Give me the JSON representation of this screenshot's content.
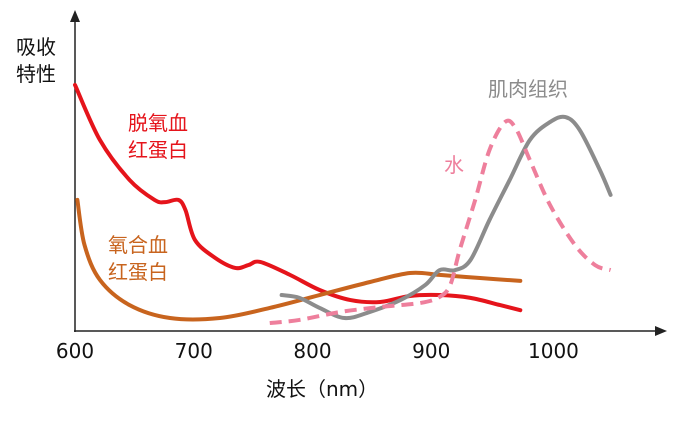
{
  "chart_data": {
    "type": "line",
    "title": "",
    "xlabel": "波长（nm）",
    "ylabel": [
      "吸收",
      "特性"
    ],
    "xlim": [
      600,
      1100
    ],
    "ylim": [
      0,
      100
    ],
    "xticks": [
      600,
      700,
      800,
      900,
      1000
    ],
    "grid": false,
    "series": [
      {
        "name": [
          "脱氧血",
          "红蛋白"
        ],
        "color": "#e5141b",
        "dashed": false,
        "x": [
          600,
          621,
          646,
          667,
          676,
          687,
          693,
          701,
          718,
          735,
          746,
          756,
          781,
          806,
          832,
          857,
          882,
          907,
          933,
          958,
          975
        ],
        "y": [
          77.8,
          60.3,
          47.6,
          41.3,
          40.6,
          41.3,
          38.1,
          28.6,
          22.9,
          19.7,
          20.6,
          21.6,
          17.5,
          12.7,
          9.5,
          8.9,
          10.8,
          11.1,
          10.2,
          7.9,
          6.3
        ]
      },
      {
        "name": [
          "氧合血",
          "红蛋白"
        ],
        "color": "#c8641e",
        "dashed": false,
        "x": [
          602,
          608,
          621,
          646,
          680,
          722,
          764,
          806,
          848,
          882,
          907,
          941,
          975
        ],
        "y": [
          41.3,
          27,
          15.9,
          7.9,
          3.8,
          3.8,
          7,
          11.1,
          15.2,
          18.1,
          17.5,
          16.5,
          15.6
        ]
      },
      {
        "name": [
          "肌肉组织"
        ],
        "color": "#8c8c8c",
        "dashed": false,
        "x": [
          774,
          789,
          806,
          827,
          848,
          874,
          895,
          907,
          920,
          933,
          949,
          966,
          983,
          1000,
          1013,
          1025,
          1042,
          1051
        ],
        "y": [
          11.1,
          10.2,
          7,
          3.8,
          5.7,
          9.5,
          14.3,
          19,
          19,
          22.2,
          34.9,
          47.6,
          60.3,
          66,
          67.6,
          63.5,
          50.8,
          42.9
        ]
      },
      {
        "name": [
          "水"
        ],
        "color": "#ee7f9c",
        "dashed": true,
        "x": [
          764,
          789,
          823,
          857,
          891,
          907,
          916,
          924,
          937,
          949,
          962,
          971,
          983,
          1000,
          1021,
          1038,
          1051
        ],
        "y": [
          2.2,
          3.2,
          5.7,
          7.3,
          8.6,
          10.5,
          14.3,
          25.4,
          41.3,
          57.1,
          66,
          64.1,
          54,
          39.7,
          27,
          20.6,
          19
        ]
      }
    ]
  }
}
